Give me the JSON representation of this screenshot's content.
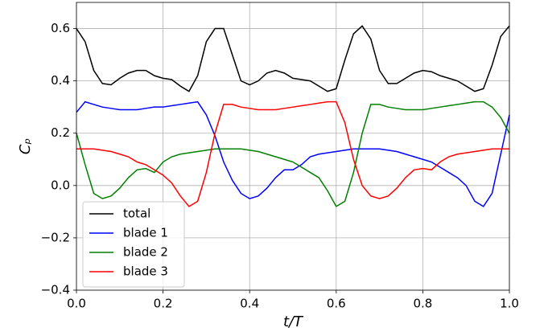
{
  "chart_data": {
    "type": "line",
    "xlabel": "t/T",
    "ylabel": "Cₚ",
    "x": [
      0,
      0.02,
      0.04,
      0.06,
      0.08,
      0.1,
      0.12,
      0.14,
      0.16,
      0.18,
      0.2,
      0.22,
      0.24,
      0.26,
      0.28,
      0.3,
      0.32,
      0.34,
      0.36,
      0.38,
      0.4,
      0.42,
      0.44,
      0.46,
      0.48,
      0.5,
      0.52,
      0.54,
      0.56,
      0.58,
      0.6,
      0.62,
      0.64,
      0.66,
      0.68,
      0.7,
      0.72,
      0.74,
      0.76,
      0.78,
      0.8,
      0.82,
      0.84,
      0.86,
      0.88,
      0.9,
      0.92,
      0.94,
      0.96,
      0.98,
      1.0
    ],
    "series": [
      {
        "name": "total",
        "color": "#000000",
        "values": [
          0.6,
          0.55,
          0.44,
          0.39,
          0.385,
          0.41,
          0.43,
          0.44,
          0.44,
          0.42,
          0.41,
          0.405,
          0.38,
          0.36,
          0.42,
          0.55,
          0.6,
          0.6,
          0.5,
          0.4,
          0.385,
          0.4,
          0.43,
          0.44,
          0.43,
          0.41,
          0.405,
          0.4,
          0.38,
          0.36,
          0.37,
          0.48,
          0.58,
          0.61,
          0.56,
          0.44,
          0.39,
          0.39,
          0.41,
          0.43,
          0.44,
          0.435,
          0.42,
          0.41,
          0.4,
          0.38,
          0.36,
          0.37,
          0.46,
          0.57,
          0.61
        ]
      },
      {
        "name": "blade 1",
        "color": "#0000ff",
        "values": [
          0.28,
          0.32,
          0.31,
          0.3,
          0.295,
          0.29,
          0.29,
          0.29,
          0.295,
          0.3,
          0.3,
          0.305,
          0.31,
          0.315,
          0.32,
          0.27,
          0.19,
          0.09,
          0.02,
          -0.03,
          -0.05,
          -0.04,
          -0.01,
          0.03,
          0.06,
          0.06,
          0.08,
          0.11,
          0.12,
          0.125,
          0.13,
          0.135,
          0.14,
          0.14,
          0.14,
          0.14,
          0.135,
          0.13,
          0.12,
          0.11,
          0.1,
          0.09,
          0.07,
          0.05,
          0.03,
          0.0,
          -0.06,
          -0.08,
          -0.03,
          0.12,
          0.27
        ]
      },
      {
        "name": "blade 2",
        "color": "#008000",
        "values": [
          0.2,
          0.08,
          -0.03,
          -0.05,
          -0.04,
          -0.01,
          0.03,
          0.06,
          0.065,
          0.05,
          0.09,
          0.11,
          0.12,
          0.125,
          0.13,
          0.135,
          0.14,
          0.14,
          0.14,
          0.14,
          0.135,
          0.13,
          0.12,
          0.11,
          0.1,
          0.09,
          0.07,
          0.05,
          0.03,
          -0.02,
          -0.08,
          -0.06,
          0.05,
          0.2,
          0.31,
          0.31,
          0.3,
          0.295,
          0.29,
          0.29,
          0.29,
          0.295,
          0.3,
          0.305,
          0.31,
          0.315,
          0.32,
          0.32,
          0.3,
          0.26,
          0.2
        ]
      },
      {
        "name": "blade 3",
        "color": "#ff0000",
        "values": [
          0.14,
          0.14,
          0.14,
          0.135,
          0.13,
          0.12,
          0.11,
          0.09,
          0.08,
          0.06,
          0.04,
          0.01,
          -0.04,
          -0.08,
          -0.06,
          0.05,
          0.2,
          0.31,
          0.31,
          0.3,
          0.295,
          0.29,
          0.29,
          0.29,
          0.295,
          0.3,
          0.305,
          0.31,
          0.315,
          0.32,
          0.32,
          0.24,
          0.1,
          0.0,
          -0.04,
          -0.05,
          -0.04,
          -0.01,
          0.03,
          0.06,
          0.065,
          0.06,
          0.09,
          0.11,
          0.12,
          0.125,
          0.13,
          0.135,
          0.14,
          0.14,
          0.14
        ]
      }
    ],
    "xlim": [
      0,
      1
    ],
    "xticks": [
      {
        "value": 0,
        "label": "0.0"
      },
      0.2,
      0.4,
      0.6,
      0.8,
      {
        "value": 1,
        "label": "1.0"
      }
    ],
    "ylim": [
      -0.4,
      0.7
    ],
    "yticks": [
      {
        "value": -0.4,
        "label": "−0.4"
      },
      {
        "value": -0.2,
        "label": "−0.2"
      },
      {
        "value": 0,
        "label": "0.0"
      },
      0.2,
      0.4,
      0.6
    ],
    "grid": true,
    "legend": "lower left"
  }
}
